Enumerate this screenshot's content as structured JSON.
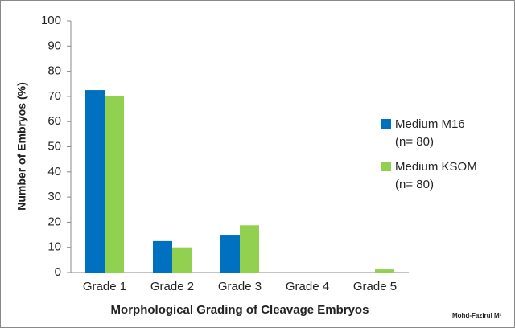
{
  "chart_data": {
    "type": "bar",
    "xlabel": "Morphological Grading of Cleavage Embryos",
    "ylabel": "Number of Embryos (%)",
    "categories": [
      "Grade 1",
      "Grade 2",
      "Grade 3",
      "Grade 4",
      "Grade 5"
    ],
    "series": [
      {
        "name": "Medium M16 (n= 80)",
        "color": "#0070c0",
        "values": [
          72.5,
          12.5,
          15,
          0,
          0
        ]
      },
      {
        "name": "Medium KSOM (n= 80)",
        "color": "#92d050",
        "values": [
          70,
          10,
          18.75,
          0,
          1.25
        ]
      }
    ],
    "ylim": [
      0,
      100
    ],
    "yticks": [
      0,
      10,
      20,
      30,
      40,
      50,
      60,
      70,
      80,
      90,
      100
    ],
    "grid": false,
    "legend": "right",
    "annotation": "Mohd-Fazirul M¹"
  }
}
